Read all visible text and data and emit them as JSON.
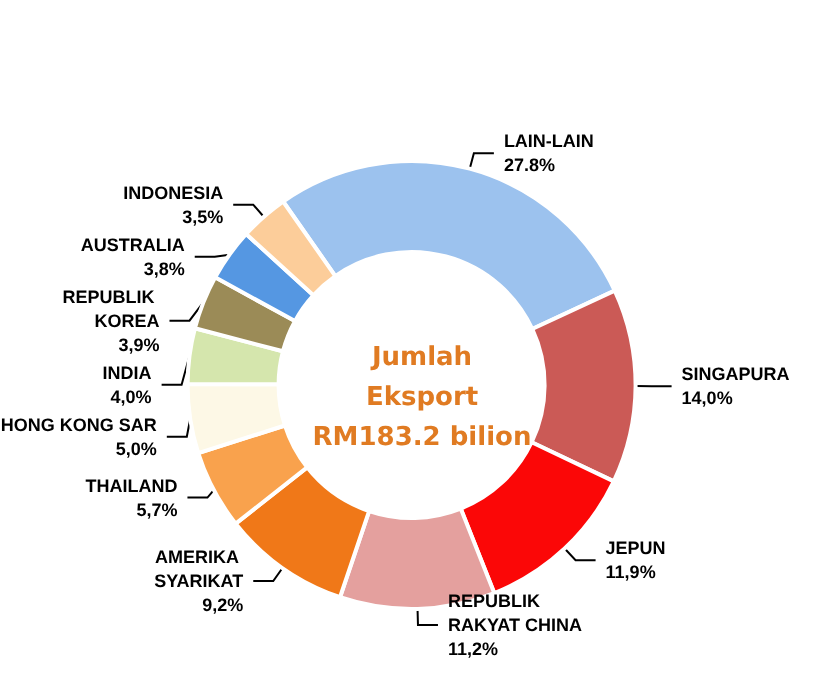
{
  "chart_data": {
    "type": "donut",
    "title": "Jumlah\nEksport\nRM183.2 bilion",
    "categories": [
      "LAIN-LAIN",
      "SINGAPURA",
      "JEPUN",
      "REPUBLIK RAKYAT CHINA",
      "AMERIKA SYARIKAT",
      "THAILAND",
      "HONG KONG SAR",
      "INDIA",
      "REPUBLIK KOREA",
      "AUSTRALIA",
      "INDONESIA"
    ],
    "values": [
      27.8,
      14.0,
      11.9,
      11.2,
      9.2,
      5.7,
      5.0,
      4.0,
      3.9,
      3.8,
      3.5
    ],
    "value_labels": [
      "27.8%",
      "14,0%",
      "11,9%",
      "11,2%",
      "9,2%",
      "5,7%",
      "5,0%",
      "4,0%",
      "3,9%",
      "3,8%",
      "3,5%"
    ],
    "colors": [
      "#9cc2ee",
      "#cb5a56",
      "#fb0707",
      "#e4a09e",
      "#f07818",
      "#f9a24d",
      "#fdf8e6",
      "#d5e6ad",
      "#9b8b57",
      "#5597e2",
      "#fccd9a"
    ],
    "legend": false
  }
}
